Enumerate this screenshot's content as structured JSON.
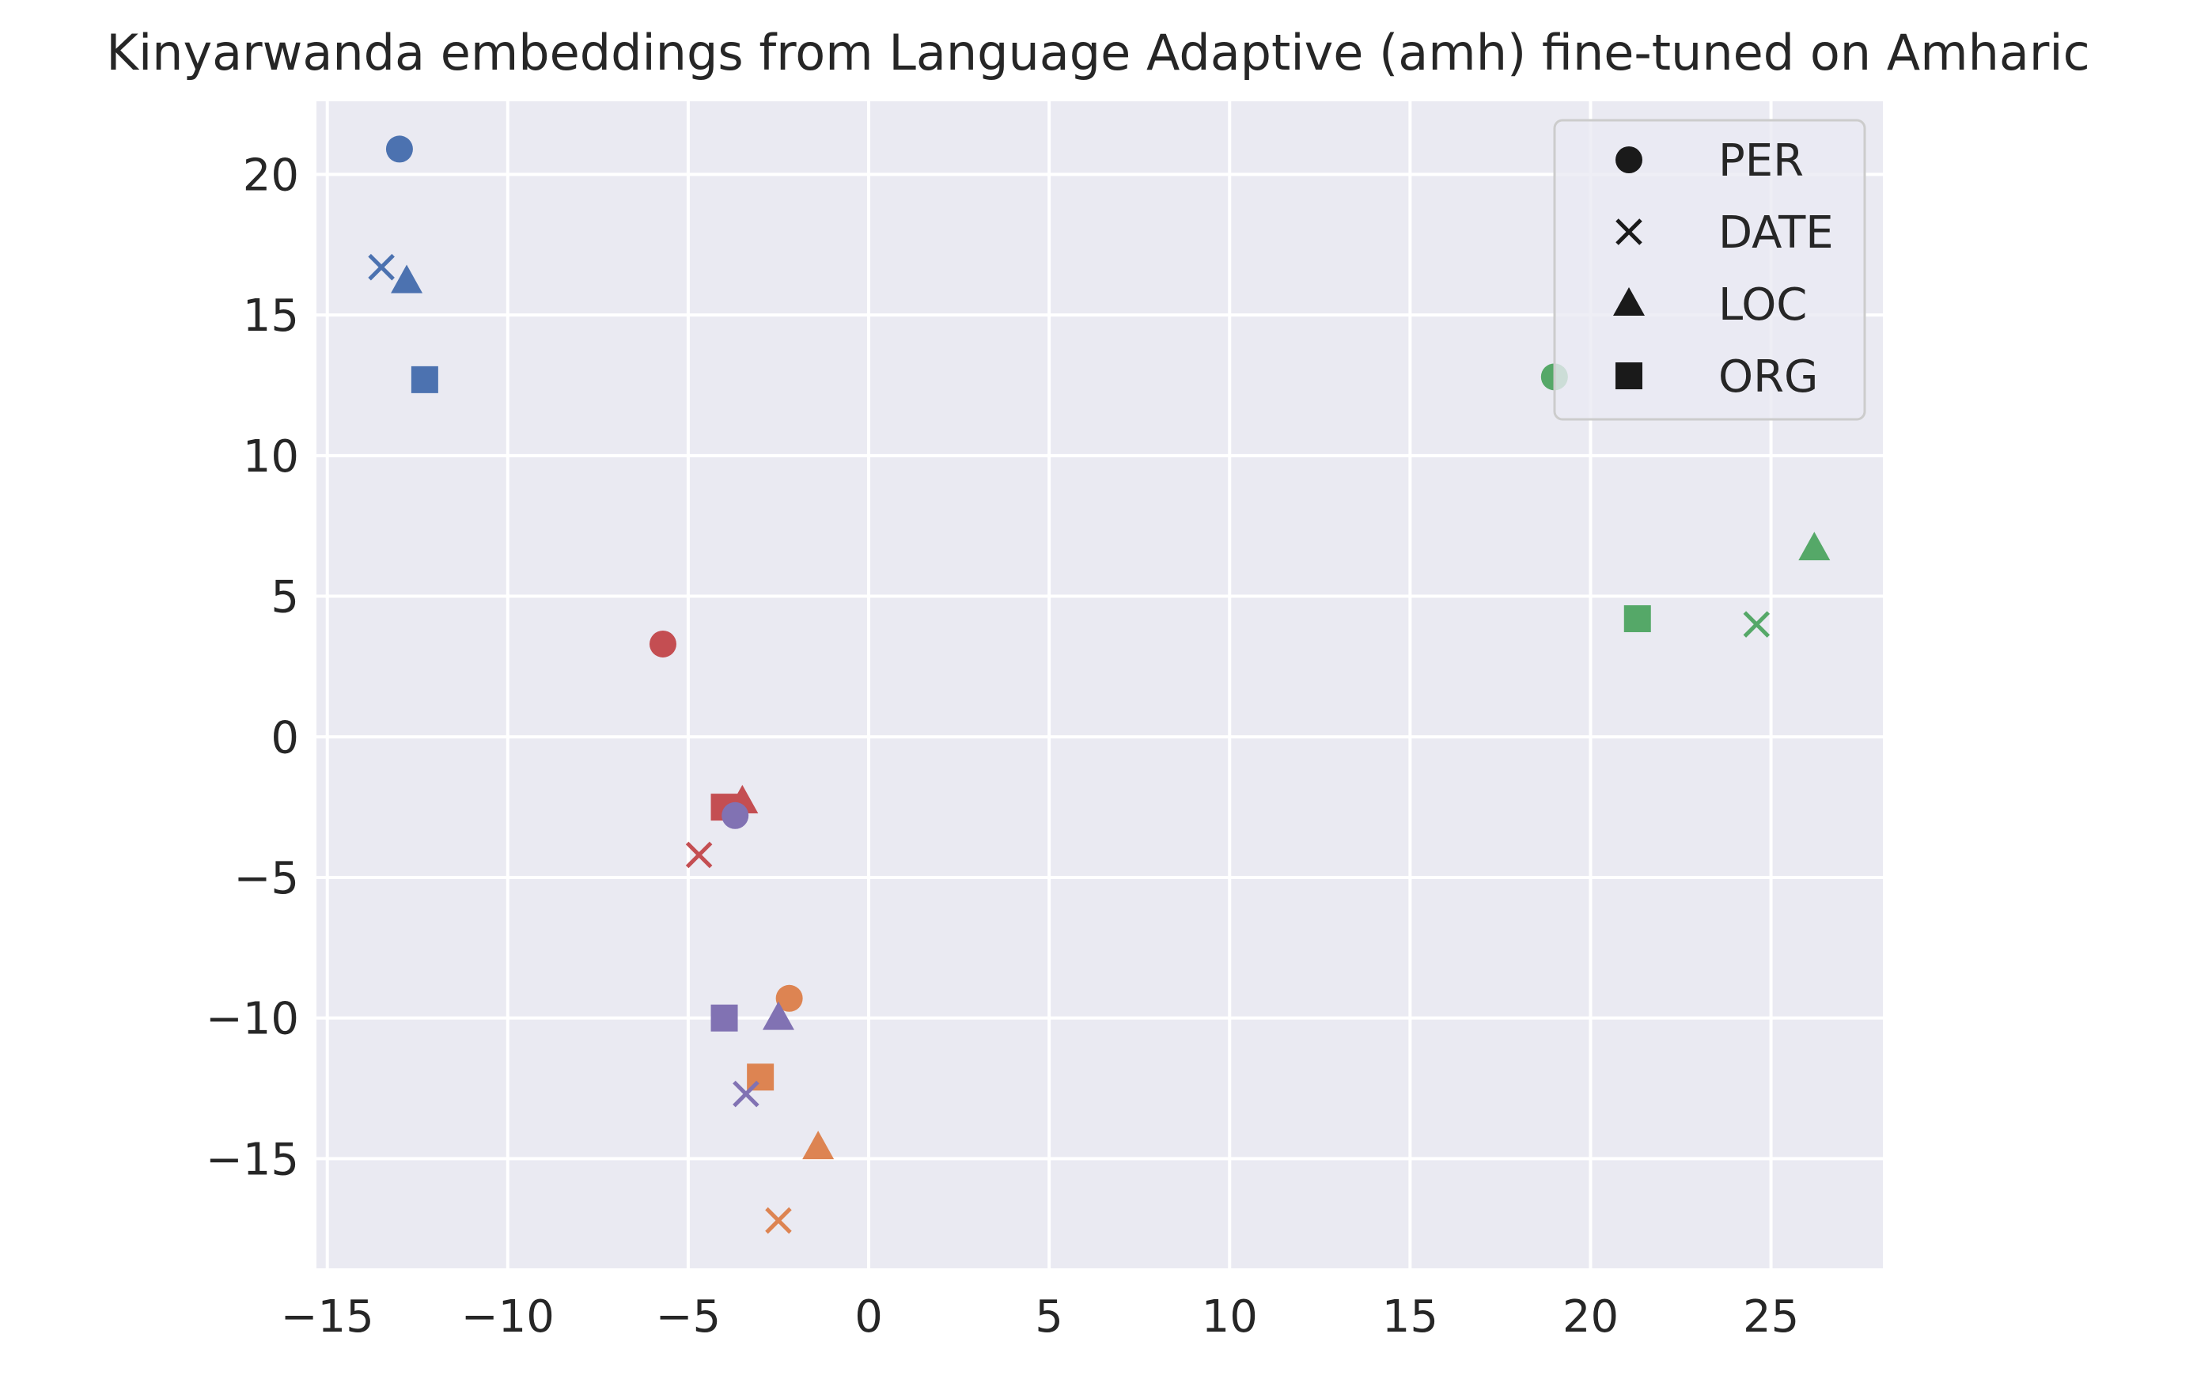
{
  "chart_data": {
    "type": "scatter",
    "title": "Kinyarwanda embeddings from Language Adaptive (amh) fine-tuned on Amharic",
    "xlabel": "",
    "ylabel": "",
    "xlim": [
      -15.3,
      28.1
    ],
    "ylim": [
      -18.9,
      22.6
    ],
    "xticks": [
      -15,
      -10,
      -5,
      0,
      5,
      10,
      15,
      20,
      25
    ],
    "yticks": [
      -15,
      -10,
      -5,
      0,
      5,
      10,
      15,
      20
    ],
    "xtick_labels": [
      "−15",
      "−10",
      "−5",
      "0",
      "5",
      "10",
      "15",
      "20",
      "25"
    ],
    "ytick_labels": [
      "−15",
      "−10",
      "−5",
      "0",
      "5",
      "10",
      "15",
      "20"
    ],
    "grid": true,
    "background": "#eaeaf2",
    "legend": {
      "position": "top-right",
      "entries": [
        {
          "label": "PER",
          "marker": "circle"
        },
        {
          "label": "DATE",
          "marker": "x"
        },
        {
          "label": "LOC",
          "marker": "triangle"
        },
        {
          "label": "ORG",
          "marker": "square"
        }
      ]
    },
    "groups": [
      {
        "color": "#4c72b0",
        "points": [
          {
            "label": "PER",
            "x": -13.0,
            "y": 20.9
          },
          {
            "label": "DATE",
            "x": -13.5,
            "y": 16.7
          },
          {
            "label": "LOC",
            "x": -12.8,
            "y": 16.2
          },
          {
            "label": "ORG",
            "x": -12.3,
            "y": 12.7
          }
        ]
      },
      {
        "color": "#dd8452",
        "points": [
          {
            "label": "PER",
            "x": -2.2,
            "y": -9.3
          },
          {
            "label": "DATE",
            "x": -2.5,
            "y": -17.2
          },
          {
            "label": "LOC",
            "x": -1.4,
            "y": -14.6
          },
          {
            "label": "ORG",
            "x": -3.0,
            "y": -12.1
          }
        ]
      },
      {
        "color": "#55a868",
        "points": [
          {
            "label": "PER",
            "x": 19.0,
            "y": 12.8
          },
          {
            "label": "DATE",
            "x": 24.6,
            "y": 4.0
          },
          {
            "label": "LOC",
            "x": 26.2,
            "y": 6.7
          },
          {
            "label": "ORG",
            "x": 21.3,
            "y": 4.2
          }
        ]
      },
      {
        "color": "#c44e52",
        "points": [
          {
            "label": "PER",
            "x": -5.7,
            "y": 3.3
          },
          {
            "label": "DATE",
            "x": -4.7,
            "y": -4.2
          },
          {
            "label": "LOC",
            "x": -3.5,
            "y": -2.3
          },
          {
            "label": "ORG",
            "x": -4.0,
            "y": -2.5
          }
        ]
      },
      {
        "color": "#8172b3",
        "points": [
          {
            "label": "PER",
            "x": -3.7,
            "y": -2.8
          },
          {
            "label": "DATE",
            "x": -3.4,
            "y": -12.7
          },
          {
            "label": "LOC",
            "x": -2.5,
            "y": -10.0
          },
          {
            "label": "ORG",
            "x": -4.0,
            "y": -10.0
          }
        ]
      }
    ]
  }
}
